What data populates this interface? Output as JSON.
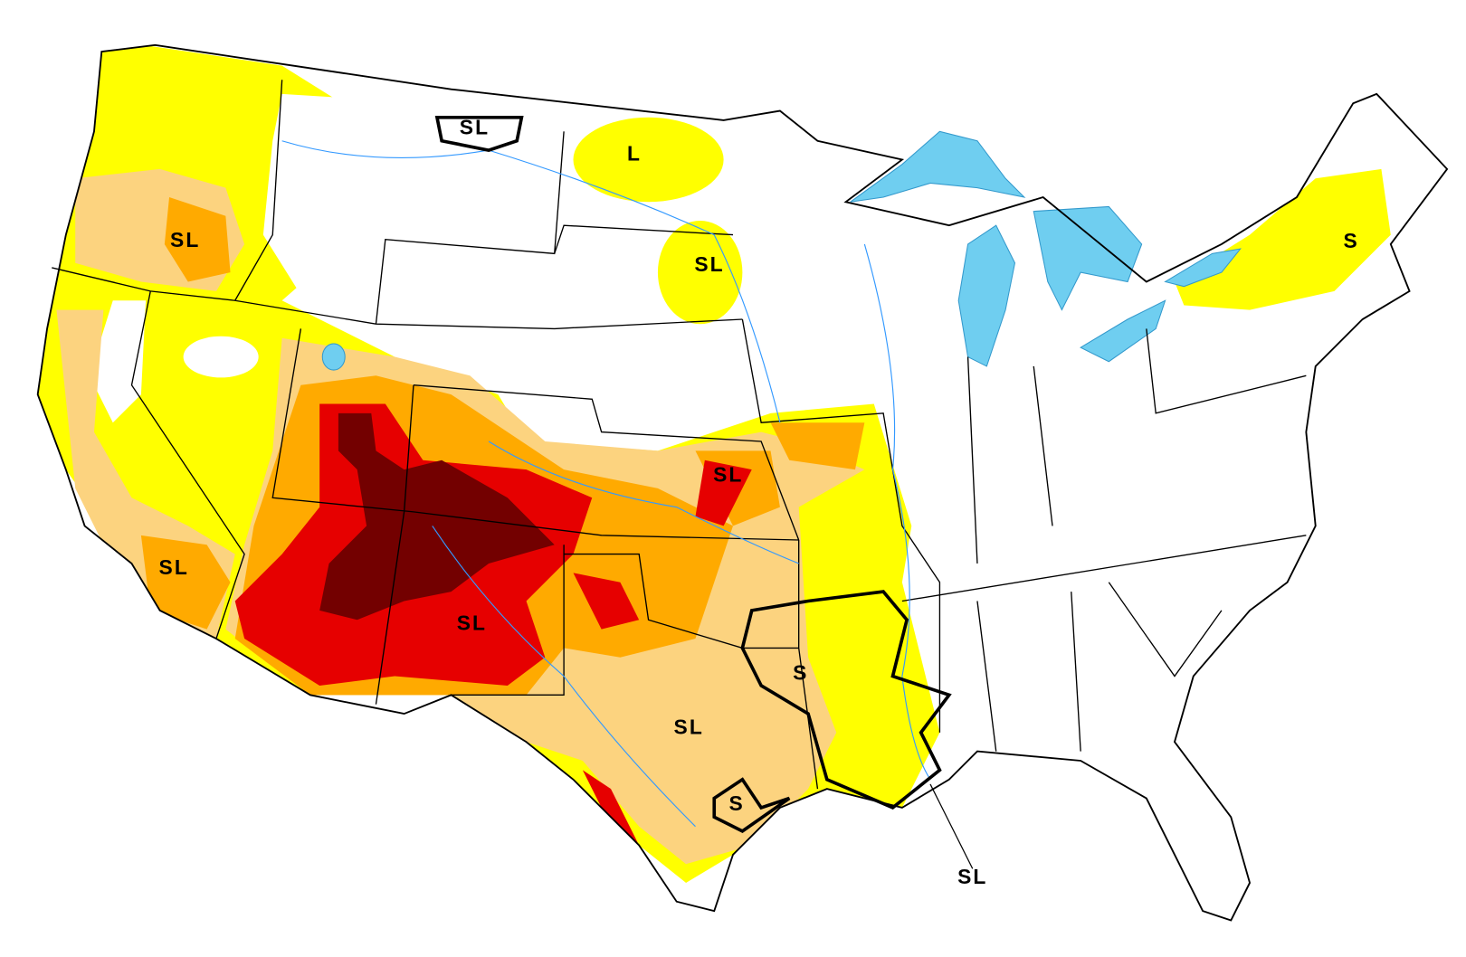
{
  "labels": [
    "SL",
    "L",
    "SL",
    "SL",
    "S",
    "SL",
    "SL",
    "SL",
    "S",
    "SL",
    "S",
    "SL"
  ]
}
